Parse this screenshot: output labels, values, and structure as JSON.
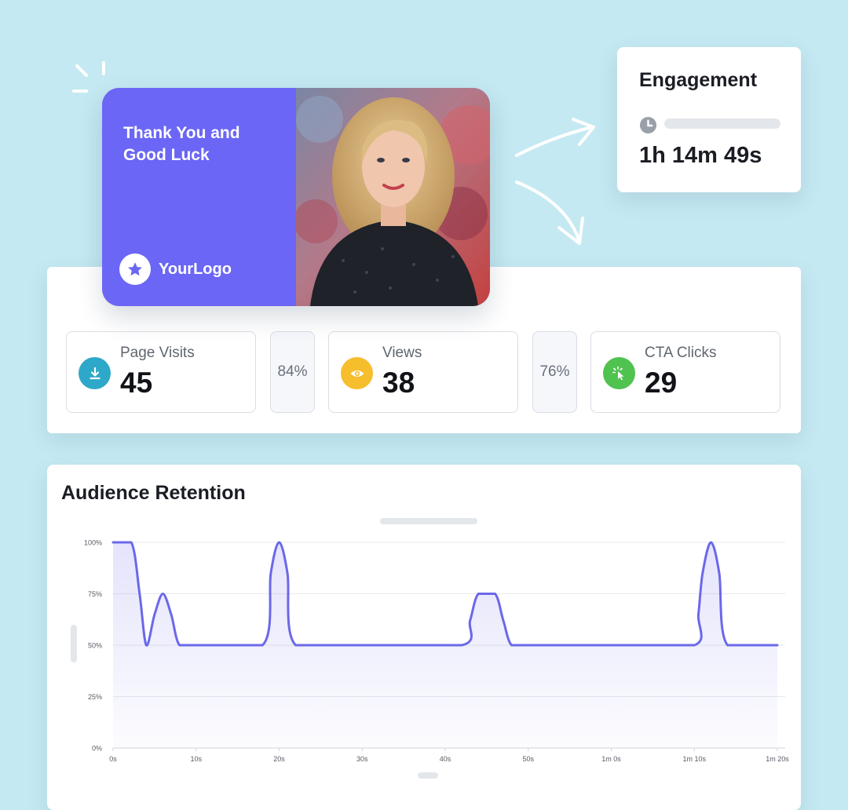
{
  "promo_card": {
    "title": "Thank You and Good Luck",
    "logo_text": "YourLogo",
    "logo_icon": "star-icon",
    "accent_color": "#6b66f5"
  },
  "engagement": {
    "title": "Engagement",
    "icon": "clock-icon",
    "duration": "1h 14m 49s"
  },
  "stats": {
    "items": [
      {
        "label": "Page Visits",
        "value": "45",
        "icon": "download-icon",
        "color": "#2ea8c9"
      },
      {
        "label": "Views",
        "value": "38",
        "icon": "eye-icon",
        "color": "#f6bd2d"
      },
      {
        "label": "CTA Clicks",
        "value": "29",
        "icon": "cursor-click-icon",
        "color": "#4fc24f"
      }
    ],
    "conversions": [
      "84%",
      "76%"
    ]
  },
  "retention": {
    "title": "Audience Retention"
  },
  "chart_data": {
    "type": "area",
    "title": "Audience Retention",
    "line_color": "#6b68ea",
    "grid": true,
    "x_tick_labels": [
      "0s",
      "10s",
      "20s",
      "30s",
      "40s",
      "50s",
      "1m 0s",
      "1m 10s",
      "1m 20s"
    ],
    "y_tick_labels": [
      "100%",
      "75%",
      "50%",
      "25%",
      "0%"
    ],
    "xlim": [
      0,
      80
    ],
    "ylim": [
      0,
      100
    ],
    "series": [
      {
        "x": [
          0,
          2.2,
          3.2,
          4,
          5,
          6,
          7,
          8,
          10,
          18,
          19,
          20,
          21,
          22,
          30,
          42,
          43,
          44,
          46,
          47,
          48,
          50,
          60,
          70,
          70.5,
          71,
          72,
          73,
          74,
          80
        ],
        "y": [
          100,
          100,
          75,
          50,
          65,
          75,
          65,
          50,
          50,
          50,
          85,
          100,
          85,
          50,
          50,
          50,
          62,
          75,
          75,
          62,
          50,
          50,
          50,
          50,
          65,
          85,
          100,
          85,
          50,
          50
        ]
      }
    ]
  }
}
